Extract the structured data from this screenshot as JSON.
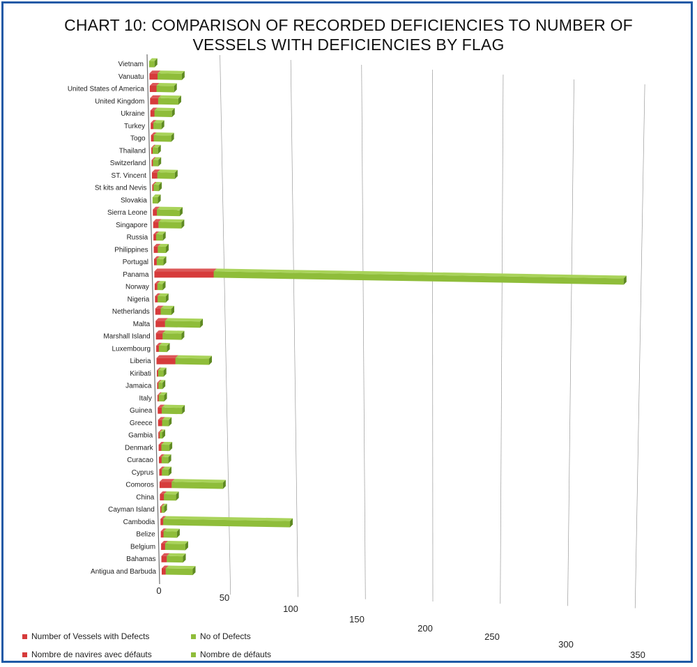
{
  "chart_data": {
    "type": "bar",
    "orientation": "horizontal",
    "stacked": true,
    "title": "CHART 10: COMPARISON OF RECORDED DEFICIENCIES  TO NUMBER OF VESSELS WITH DEFICIENCIES BY FLAG",
    "title_lines": [
      "CHART 10: COMPARISON OF RECORDED DEFICIENCIES  TO NUMBER OF",
      "VESSELS WITH DEFICIENCIES BY FLAG"
    ],
    "categories": [
      "Vietnam",
      "Vanuatu",
      "United States of America",
      "United Kingdom",
      "Ukraine",
      "Turkey",
      "Togo",
      "Thailand",
      "Switzerland",
      "ST. Vincent",
      "St kits and Nevis",
      "Slovakia",
      "Sierra Leone",
      "Singapore",
      "Russia",
      "Philippines",
      "Portugal",
      "Panama",
      "Norway",
      "Nigeria",
      "Netherlands",
      "Malta",
      "Marshall Island",
      "Luxembourg",
      "Liberia",
      "Kiribati",
      "Jamaica",
      "Italy",
      "Guinea",
      "Greece",
      "Gambia",
      "Denmark",
      "Curacao",
      "Cyprus",
      "Comoros",
      "China",
      "Cayman Island",
      "Cambodia",
      "Belize",
      "Belgium",
      "Bahamas",
      "Antigua and Barbuda"
    ],
    "series": [
      {
        "name": "Number of Vessels with Defects",
        "name_fr": "Nombre de navires avec défauts",
        "color": "#d63b3b",
        "values": [
          0,
          6,
          5,
          6,
          3,
          2,
          2,
          1,
          1,
          4,
          1,
          0,
          3,
          4,
          2,
          3,
          2,
          44,
          2,
          2,
          4,
          7,
          5,
          2,
          14,
          1,
          1,
          1,
          3,
          3,
          1,
          2,
          2,
          2,
          9,
          3,
          1,
          2,
          2,
          3,
          4,
          3
        ]
      },
      {
        "name": "No of Defects",
        "name_fr": "Nombre de défauts",
        "color": "#8fbd3a",
        "values": [
          4,
          18,
          13,
          15,
          13,
          6,
          13,
          4,
          4,
          13,
          4,
          4,
          17,
          17,
          5,
          6,
          5,
          304,
          4,
          6,
          8,
          26,
          14,
          6,
          25,
          4,
          3,
          4,
          15,
          5,
          2,
          6,
          5,
          5,
          38,
          9,
          2,
          94,
          10,
          15,
          12,
          20
        ]
      }
    ],
    "xticks": [
      "0",
      "50",
      "100",
      "150",
      "200",
      "250",
      "300",
      "350"
    ],
    "xlim": [
      0,
      350
    ],
    "legend": "bottom-left"
  },
  "colors": {
    "frame": "#1f5aa6",
    "red": "#d63b3b",
    "green": "#8fbd3a"
  }
}
